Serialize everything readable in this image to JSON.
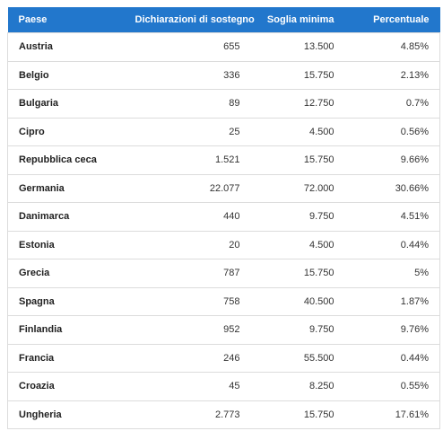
{
  "table": {
    "columns": [
      "Paese",
      "Dichiarazioni di sostegno",
      "Soglia minima",
      "Percentuale"
    ],
    "rows": [
      [
        "Austria",
        "655",
        "13.500",
        "4.85%"
      ],
      [
        "Belgio",
        "336",
        "15.750",
        "2.13%"
      ],
      [
        "Bulgaria",
        "89",
        "12.750",
        "0.7%"
      ],
      [
        "Cipro",
        "25",
        "4.500",
        "0.56%"
      ],
      [
        "Repubblica ceca",
        "1.521",
        "15.750",
        "9.66%"
      ],
      [
        "Germania",
        "22.077",
        "72.000",
        "30.66%"
      ],
      [
        "Danimarca",
        "440",
        "9.750",
        "4.51%"
      ],
      [
        "Estonia",
        "20",
        "4.500",
        "0.44%"
      ],
      [
        "Grecia",
        "787",
        "15.750",
        "5%"
      ],
      [
        "Spagna",
        "758",
        "40.500",
        "1.87%"
      ],
      [
        "Finlandia",
        "952",
        "9.750",
        "9.76%"
      ],
      [
        "Francia",
        "246",
        "55.500",
        "0.44%"
      ],
      [
        "Croazia",
        "45",
        "8.250",
        "0.55%"
      ],
      [
        "Ungheria",
        "2.773",
        "15.750",
        "17.61%"
      ]
    ]
  }
}
